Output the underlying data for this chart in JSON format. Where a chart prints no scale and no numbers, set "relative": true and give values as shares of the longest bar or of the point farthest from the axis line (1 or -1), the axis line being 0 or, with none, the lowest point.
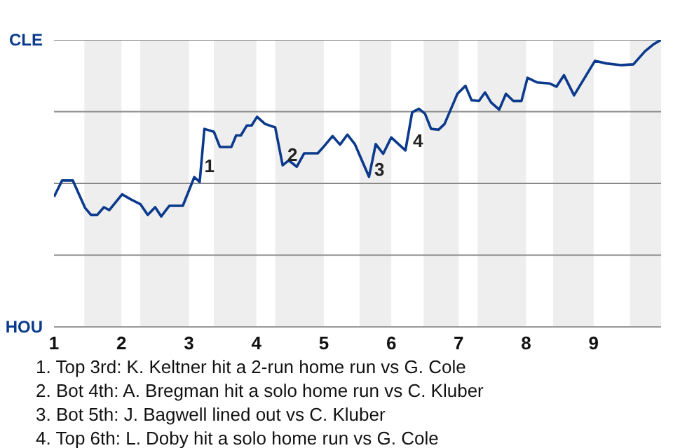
{
  "chart_data": {
    "type": "line",
    "relative": true,
    "x": [
      1.0,
      1.12,
      1.28,
      1.46,
      1.55,
      1.64,
      1.74,
      1.82,
      2.01,
      2.15,
      2.28,
      2.39,
      2.5,
      2.59,
      2.71,
      2.91,
      3.08,
      3.16,
      3.23,
      3.37,
      3.46,
      3.63,
      3.7,
      3.77,
      3.86,
      3.93,
      4.01,
      4.13,
      4.28,
      4.39,
      4.48,
      4.6,
      4.71,
      4.91,
      4.98,
      5.13,
      5.24,
      5.35,
      5.46,
      5.67,
      5.77,
      5.88,
      6.0,
      6.21,
      6.31,
      6.41,
      6.5,
      6.59,
      6.7,
      6.79,
      6.98,
      7.1,
      7.19,
      7.3,
      7.39,
      7.48,
      7.6,
      7.7,
      7.81,
      7.93,
      8.02,
      8.16,
      8.35,
      8.45,
      8.56,
      8.71,
      9.02,
      9.19,
      9.4,
      9.59,
      9.76,
      9.89,
      10.0
    ],
    "series": [
      {
        "color": "#0b3a8c",
        "values": [
          0.453,
          0.51,
          0.51,
          0.415,
          0.39,
          0.39,
          0.417,
          0.407,
          0.462,
          0.443,
          0.428,
          0.39,
          0.417,
          0.385,
          0.422,
          0.422,
          0.522,
          0.505,
          0.69,
          0.68,
          0.627,
          0.627,
          0.667,
          0.667,
          0.702,
          0.702,
          0.732,
          0.707,
          0.695,
          0.563,
          0.58,
          0.558,
          0.605,
          0.605,
          0.623,
          0.665,
          0.635,
          0.67,
          0.637,
          0.523,
          0.637,
          0.603,
          0.66,
          0.615,
          0.748,
          0.76,
          0.743,
          0.69,
          0.687,
          0.707,
          0.812,
          0.84,
          0.79,
          0.787,
          0.817,
          0.782,
          0.757,
          0.812,
          0.787,
          0.787,
          0.868,
          0.852,
          0.848,
          0.837,
          0.877,
          0.807,
          0.927,
          0.918,
          0.912,
          0.915,
          0.96,
          0.985,
          1.0
        ]
      }
    ],
    "xlim": [
      1,
      10
    ],
    "xticks": [
      1,
      2,
      3,
      4,
      5,
      6,
      7,
      8,
      9
    ],
    "grid": "y",
    "marker": "none",
    "line_style": "solid",
    "bands": [
      {
        "axis": "x",
        "from": 1.45,
        "to": 2,
        "color": "#eeeeee"
      },
      {
        "axis": "x",
        "from": 2.28,
        "to": 3,
        "color": "#eeeeee"
      },
      {
        "axis": "x",
        "from": 3.37,
        "to": 4,
        "color": "#eeeeee"
      },
      {
        "axis": "x",
        "from": 4.28,
        "to": 5,
        "color": "#eeeeee"
      },
      {
        "axis": "x",
        "from": 5.53,
        "to": 6,
        "color": "#eeeeee"
      },
      {
        "axis": "x",
        "from": 6.48,
        "to": 7,
        "color": "#eeeeee"
      },
      {
        "axis": "x",
        "from": 7.28,
        "to": 8,
        "color": "#eeeeee"
      },
      {
        "axis": "x",
        "from": 8.4,
        "to": 9,
        "color": "#eeeeee"
      },
      {
        "axis": "x",
        "from": 9.54,
        "to": 10,
        "color": "#eeeeee"
      }
    ],
    "annotations": [
      "CLE",
      "HOU",
      {
        "text": "1",
        "x": 3.23,
        "y": 0.56
      },
      {
        "text": "2",
        "x": 4.46,
        "y": 0.6
      },
      {
        "text": "3",
        "x": 5.75,
        "y": 0.55
      },
      {
        "text": "4",
        "x": 6.32,
        "y": 0.65
      },
      "1. Top 3rd: K. Keltner hit a 2-run home run vs G. Cole",
      "2. Bot 4th: A. Bregman hit a solo home run vs C. Kluber",
      "3. Bot 5th: J. Bagwell lined out vs C. Kluber",
      "4. Top 6th: L. Doby hit a solo home run vs G. Cole"
    ]
  }
}
